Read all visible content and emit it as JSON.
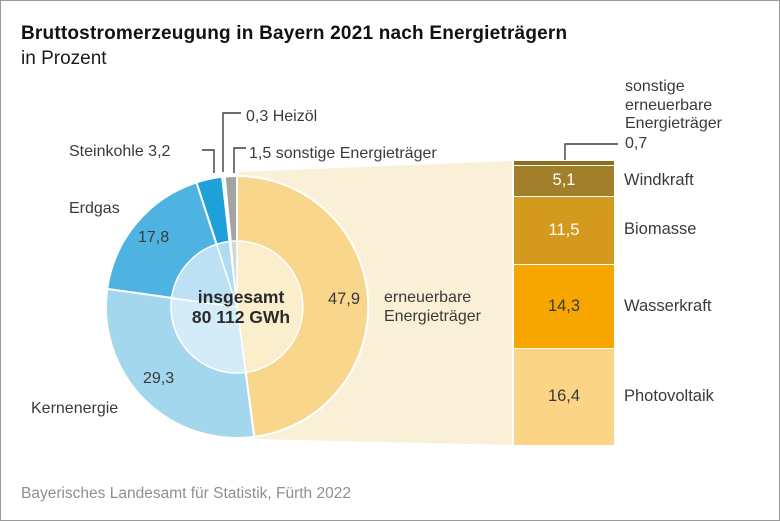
{
  "title": "Bruttostromerzeugung in Bayern 2021 nach Energieträgern",
  "subtitle": "in Prozent",
  "source": "Bayerisches Landesamt für Statistik, Fürth 2022",
  "chart_data": [
    {
      "type": "pie",
      "title": "Bruttostromerzeugung in Bayern 2021 nach Energieträgern",
      "unit": "Prozent",
      "start_angle_deg": 0,
      "direction": "clockwise",
      "center": {
        "line1": "insgesamt",
        "line2": "80 112 GWh"
      },
      "slices": [
        {
          "label": "erneuerbare Energieträger",
          "value": 47.9,
          "display": "47,9",
          "color": "#f8d68c",
          "inner_color": "#fbeecd"
        },
        {
          "label": "Kernenergie",
          "value": 29.3,
          "display": "29,3",
          "color": "#a3d7ee",
          "inner_color": "#d4ecf8"
        },
        {
          "label": "Erdgas",
          "value": 17.8,
          "display": "17,8",
          "color": "#4fb3e1",
          "inner_color": "#bce1f4"
        },
        {
          "label": "Steinkohle",
          "value": 3.2,
          "display": "3,2",
          "color": "#1ea1d9",
          "inner_color": "#aedcf1"
        },
        {
          "label": "Heizöl",
          "value": 0.3,
          "display": "0,3",
          "color": "#c9d0d4",
          "inner_color": "#e3e7e9"
        },
        {
          "label": "sonstige Energieträger",
          "value": 1.5,
          "display": "1,5",
          "color": "#a3a3a3",
          "inner_color": "#d6d6d6"
        }
      ]
    },
    {
      "type": "bar",
      "stacked": true,
      "title": "erneuerbare Energieträger",
      "connector_color": "#faf0d7",
      "segments": [
        {
          "label": "sonstige erneuerbare Energieträger",
          "value": 0.7,
          "display": "0,7",
          "color": "#8c6d1f",
          "value_color": null
        },
        {
          "label": "Windkraft",
          "value": 5.1,
          "display": "5,1",
          "color": "#a2802b",
          "value_color": "#ffffff"
        },
        {
          "label": "Biomasse",
          "value": 11.5,
          "display": "11,5",
          "color": "#d49a1e",
          "value_color": "#ffffff"
        },
        {
          "label": "Wasserkraft",
          "value": 14.3,
          "display": "14,3",
          "color": "#f7a600",
          "value_color": "#3a3a3a"
        },
        {
          "label": "Photovoltaik",
          "value": 16.4,
          "display": "16,4",
          "color": "#fbd485",
          "value_color": "#3a3a3a"
        }
      ]
    }
  ]
}
